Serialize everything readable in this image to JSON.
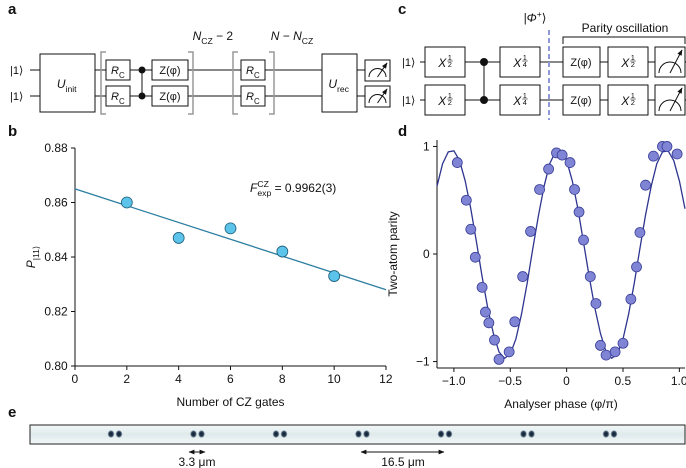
{
  "panel_labels": [
    "a",
    "b",
    "c",
    "d",
    "e"
  ],
  "circuit_a": {
    "inputs": [
      "|1⟩",
      "|1⟩"
    ],
    "u_init": {
      "text": "U",
      "sub": "init"
    },
    "rc": [
      {
        "text": "R",
        "sub": "C"
      },
      {
        "text": "R",
        "sub": "C"
      },
      {
        "text": "R",
        "sub": "C"
      },
      {
        "text": "R",
        "sub": "C"
      }
    ],
    "z": [
      "Z(φ)",
      "Z(φ)"
    ],
    "repeat_1": {
      "text": "N",
      "sub": "CZ",
      "tail": " − 2"
    },
    "repeat_2": {
      "text": "N − N",
      "sub": "CZ"
    },
    "u_rec": {
      "text": "U",
      "sub": "rec"
    }
  },
  "circuit_c": {
    "inputs": [
      "|1⟩",
      "|1⟩"
    ],
    "x_half": [
      {
        "text": "X",
        "num": "1",
        "den": "2"
      },
      {
        "text": "X",
        "num": "1",
        "den": "2"
      }
    ],
    "x_quarter": [
      {
        "text": "X",
        "num": "1",
        "den": "4"
      },
      {
        "text": "X",
        "num": "1",
        "den": "4"
      }
    ],
    "bell_state": {
      "text": "|Φ",
      "sup": "+",
      "tail": "⟩"
    },
    "parity_title": "Parity oscillation",
    "z": [
      "Z(φ)",
      "Z(φ)"
    ],
    "x_half_end": [
      {
        "text": "X",
        "num": "1",
        "den": "2"
      },
      {
        "text": "X",
        "num": "1",
        "den": "2"
      }
    ]
  },
  "image_e": {
    "scale_short": "3.3 μm",
    "scale_long": "16.5 μm"
  },
  "chart_data": [
    {
      "type": "scatter",
      "x_label": "Number of CZ gates",
      "y_label": {
        "text": "P",
        "sub": "|11⟩"
      },
      "annotation": {
        "text": "F",
        "sup": "CZ",
        "sub": "exp",
        "tail": " = 0.9962(3)"
      },
      "x": [
        2,
        4,
        6,
        8,
        10
      ],
      "values": [
        0.86,
        0.847,
        0.8505,
        0.842,
        0.833
      ],
      "fit": {
        "x": [
          0,
          12
        ],
        "values": [
          0.865,
          0.828
        ]
      },
      "xlim": [
        0,
        12
      ],
      "ylim": [
        0.8,
        0.88
      ],
      "xticks": [
        0,
        2,
        4,
        6,
        8,
        10,
        12
      ],
      "yticks": [
        {
          "value": 0.8,
          "label": "0.80"
        },
        0.82,
        0.84,
        0.86,
        0.88
      ],
      "color": "#5cc3ea",
      "edge_color": "#1f5f7a",
      "fit_color": "#2b7ea1"
    },
    {
      "type": "scatter",
      "x_label": "Analyser phase (φ/π)",
      "y_label": "Two-atom parity",
      "x": [
        -0.97,
        -0.89,
        -0.85,
        -0.81,
        -0.75,
        -0.72,
        -0.69,
        -0.64,
        -0.6,
        -0.51,
        -0.46,
        -0.39,
        -0.32,
        -0.24,
        -0.16,
        -0.09,
        -0.04,
        0.03,
        0.07,
        0.11,
        0.15,
        0.21,
        0.26,
        0.3,
        0.35,
        0.43,
        0.5,
        0.57,
        0.62,
        0.65,
        0.7,
        0.77,
        0.85,
        0.89,
        0.98
      ],
      "values": [
        0.85,
        0.5,
        0.23,
        -0.03,
        -0.31,
        -0.54,
        -0.64,
        -0.8,
        -0.98,
        -0.91,
        -0.63,
        -0.21,
        0.21,
        0.6,
        0.79,
        0.94,
        0.92,
        0.85,
        0.6,
        0.39,
        0.13,
        -0.21,
        -0.46,
        -0.85,
        -0.94,
        -0.91,
        -0.83,
        -0.42,
        -0.12,
        0.2,
        0.64,
        0.91,
        1.0,
        1.0,
        0.93
      ],
      "fit": {
        "x": [
          -1.15,
          -1.1,
          -1.05,
          -1.0,
          -0.95,
          -0.9,
          -0.85,
          -0.8,
          -0.75,
          -0.7,
          -0.65,
          -0.6,
          -0.55,
          -0.5,
          -0.45,
          -0.4,
          -0.35,
          -0.3,
          -0.25,
          -0.2,
          -0.15,
          -0.1,
          -0.05,
          0,
          0.05,
          0.1,
          0.15,
          0.2,
          0.25,
          0.3,
          0.35,
          0.4,
          0.45,
          0.5,
          0.55,
          0.6,
          0.65,
          0.7,
          0.75,
          0.8,
          0.85,
          0.9,
          0.95,
          1.0,
          1.05
        ],
        "values": [
          0.63,
          0.84,
          0.95,
          0.96,
          0.87,
          0.68,
          0.42,
          0.11,
          -0.21,
          -0.5,
          -0.74,
          -0.91,
          -0.97,
          -0.93,
          -0.79,
          -0.56,
          -0.27,
          0.05,
          0.36,
          0.63,
          0.84,
          0.95,
          0.96,
          0.87,
          0.68,
          0.42,
          0.11,
          -0.21,
          -0.5,
          -0.74,
          -0.91,
          -0.97,
          -0.93,
          -0.79,
          -0.56,
          -0.27,
          0.05,
          0.36,
          0.63,
          0.84,
          0.95,
          0.96,
          0.87,
          0.68,
          0.42
        ]
      },
      "xlim": [
        -1.15,
        1.05
      ],
      "ylim": [
        -1.06,
        1.06
      ],
      "xticks": [
        {
          "value": -1,
          "label": "−1.0"
        },
        {
          "value": -0.5,
          "label": "−0.5"
        },
        0,
        0.5,
        {
          "value": 1,
          "label": "1.0"
        }
      ],
      "yticks": [
        {
          "value": -1,
          "label": "−1"
        },
        0,
        1
      ],
      "color": "#7f84d4",
      "edge_color": "#3a3f98",
      "fit_color": "#2e3590"
    }
  ]
}
